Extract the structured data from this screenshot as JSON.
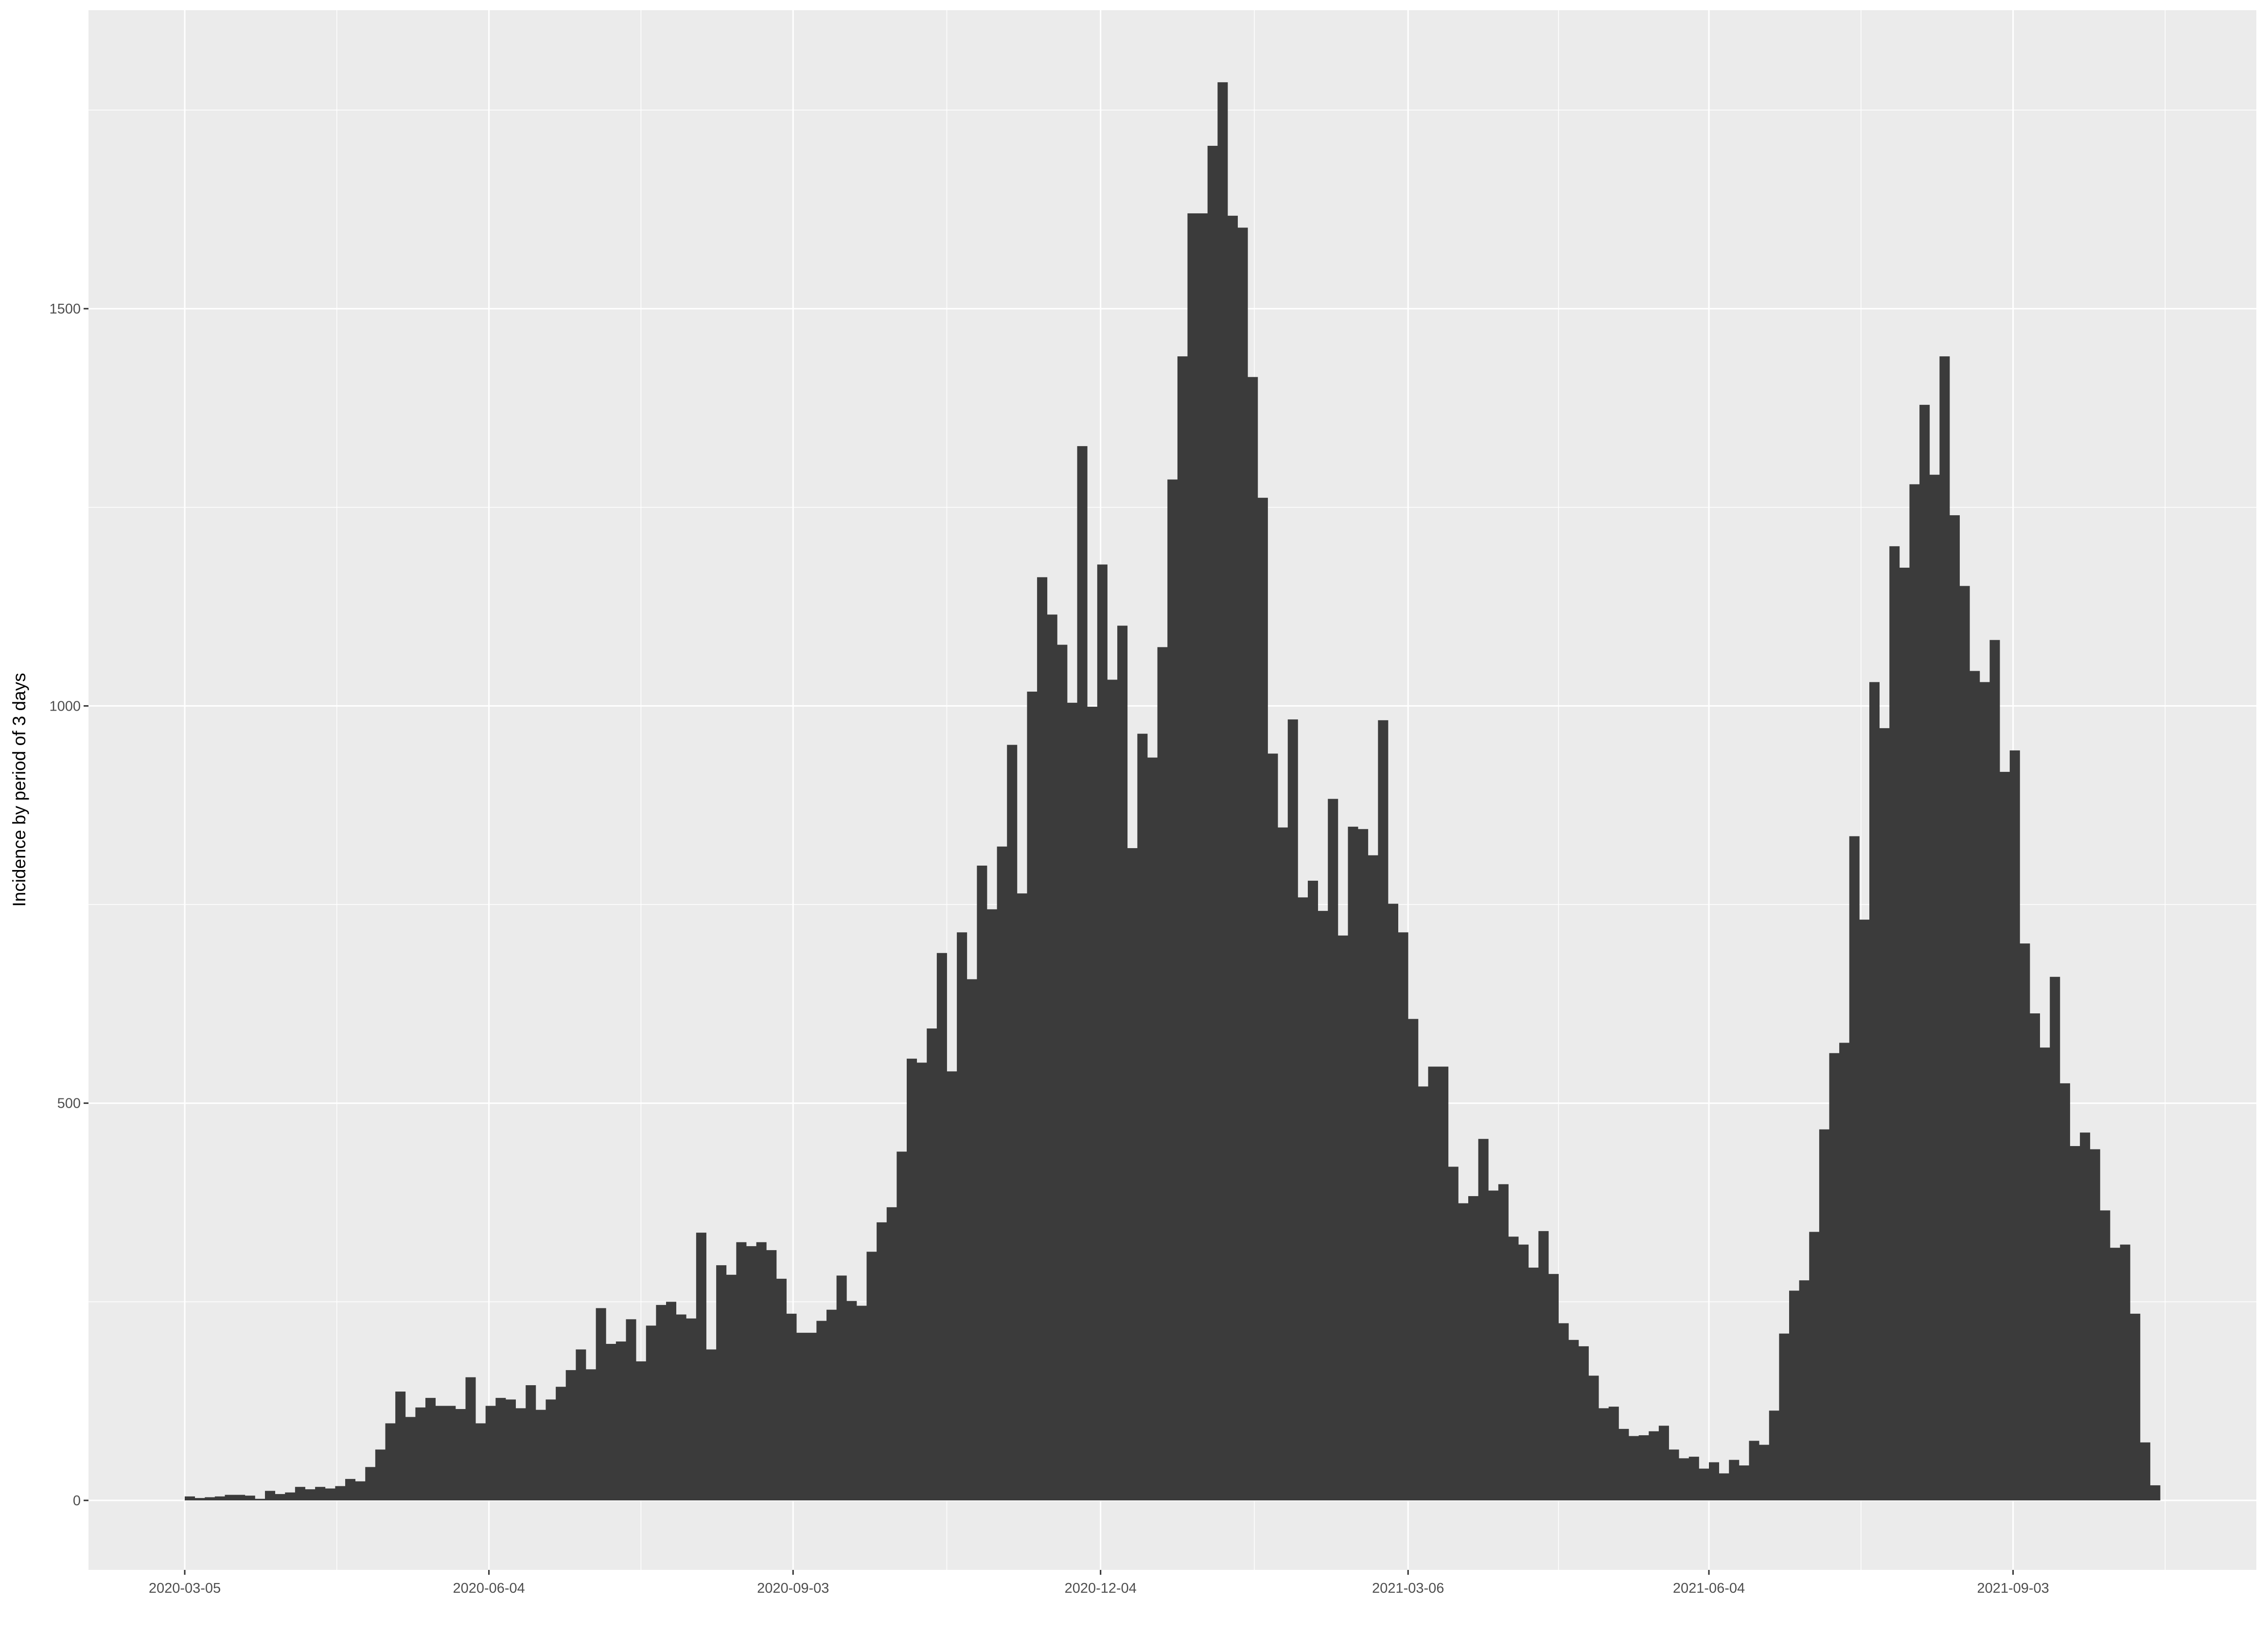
{
  "chart_data": {
    "type": "bar",
    "title": "",
    "xlabel": "",
    "ylabel": "Incidence by period of 3 days",
    "x_ticks": [
      "2020-03-05",
      "2020-06-04",
      "2020-09-03",
      "2020-12-04",
      "2021-03-06",
      "2021-06-04",
      "2021-09-03"
    ],
    "y_ticks": [
      0,
      500,
      1000,
      1500
    ],
    "ylim": [
      -90,
      1880
    ],
    "bin_days": 3,
    "first_bin_start": "2020-03-05",
    "grid": true,
    "legend": "none",
    "colors": {
      "panel_bg": "#ebebeb",
      "grid_major": "#ffffff",
      "bar_fill": "#3b3b3b"
    },
    "series": [
      {
        "values": [
          5,
          3,
          4,
          5,
          7,
          7,
          6,
          2,
          12,
          8,
          10,
          17,
          14,
          17,
          15,
          18,
          27,
          24,
          42,
          64,
          97,
          137,
          105,
          117,
          129,
          119,
          119,
          115,
          155,
          97,
          119,
          129,
          127,
          116,
          145,
          114,
          127,
          143,
          164,
          190,
          165,
          242,
          197,
          200,
          228,
          175,
          220,
          246,
          250,
          234,
          229,
          337,
          190,
          296,
          284,
          325,
          320,
          325,
          315,
          279,
          235,
          211,
          211,
          226,
          240,
          283,
          251,
          245,
          313,
          350,
          369,
          439,
          556,
          551,
          594,
          689,
          540,
          715,
          656,
          799,
          744,
          823,
          951,
          764,
          1018,
          1162,
          1115,
          1077,
          1004,
          1327,
          999,
          1178,
          1033,
          1101,
          821,
          965,
          935,
          1074,
          1285,
          1440,
          1620,
          1620,
          1705,
          1785,
          1617,
          1602,
          1414,
          1262,
          940,
          847,
          983,
          759,
          780,
          742,
          883,
          711,
          848,
          845,
          812,
          982,
          751,
          715,
          606,
          521,
          546,
          546,
          420,
          374,
          383,
          455,
          390,
          398,
          332,
          322,
          293,
          339,
          285,
          223,
          202,
          194,
          157,
          116,
          118,
          90,
          81,
          82,
          87,
          94,
          64,
          53,
          55,
          40,
          48,
          34,
          51,
          44,
          75,
          70,
          113,
          210,
          264,
          277,
          338,
          467,
          563,
          576,
          836,
          731,
          1030,
          972,
          1201,
          1174,
          1279,
          1379,
          1291,
          1440,
          1240,
          1151,
          1044,
          1030,
          1083,
          917,
          944,
          701,
          613,
          570,
          659,
          525,
          446,
          463,
          442,
          365,
          318,
          322,
          235,
          73,
          19
        ]
      }
    ]
  }
}
